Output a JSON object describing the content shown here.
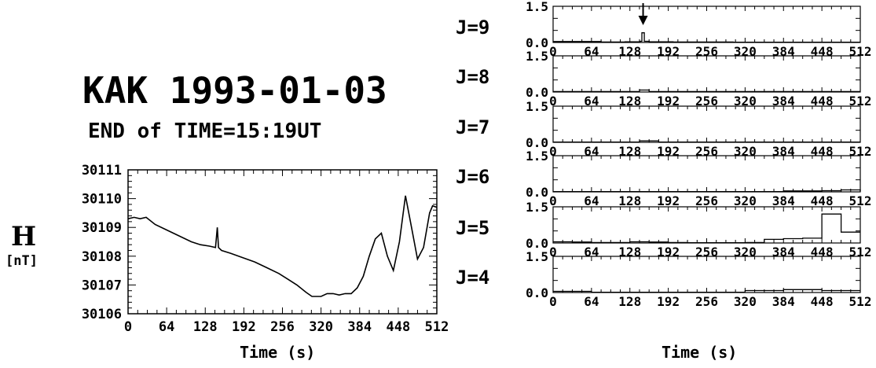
{
  "header": {
    "title": "KAK 1993-01-03",
    "subtitle": "END of TIME=15:19UT"
  },
  "left_axis": {
    "h_label": "H",
    "unit_label": "[nT]",
    "xlabel": "Time (s)"
  },
  "right_axis": {
    "xlabel": "Time (s)"
  },
  "chart_data": [
    {
      "type": "line",
      "title": "",
      "xlabel": "Time (s)",
      "ylabel": "H [nT]",
      "xlim": [
        0,
        512
      ],
      "ylim": [
        30106,
        30111
      ],
      "x_ticks": [
        0,
        64,
        128,
        192,
        256,
        320,
        384,
        448,
        512
      ],
      "y_ticks": [
        30106,
        30107,
        30108,
        30109,
        30110,
        30111
      ],
      "series": [
        {
          "x": [
            0,
            10,
            20,
            30,
            45,
            60,
            75,
            90,
            105,
            120,
            135,
            145,
            148,
            150,
            155,
            170,
            190,
            210,
            230,
            250,
            265,
            280,
            295,
            305,
            315,
            320,
            330,
            340,
            350,
            360,
            370,
            380,
            390,
            400,
            410,
            420,
            430,
            440,
            450,
            460,
            470,
            480,
            490,
            500,
            505,
            512
          ],
          "y": [
            30109.3,
            30109.35,
            30109.3,
            30109.35,
            30109.1,
            30108.95,
            30108.8,
            30108.65,
            30108.5,
            30108.4,
            30108.35,
            30108.3,
            30109.0,
            30108.3,
            30108.2,
            30108.1,
            30107.95,
            30107.8,
            30107.6,
            30107.4,
            30107.2,
            30107.0,
            30106.75,
            30106.6,
            30106.6,
            30106.6,
            30106.7,
            30106.7,
            30106.65,
            30106.7,
            30106.7,
            30106.9,
            30107.3,
            30108.0,
            30108.6,
            30108.8,
            30108.0,
            30107.5,
            30108.5,
            30110.1,
            30109.0,
            30107.9,
            30108.3,
            30109.5,
            30109.75,
            30109.7
          ]
        }
      ]
    },
    {
      "type": "bar",
      "label": "J=9",
      "xlim": [
        0,
        512
      ],
      "ylim": [
        0.0,
        1.5
      ],
      "y_ticks": [
        0.0,
        1.5
      ],
      "x_ticks": [
        0,
        64,
        128,
        192,
        256,
        320,
        384,
        448,
        512
      ],
      "annotation": "arrow at t=150",
      "x": [
        0,
        40,
        80,
        120,
        145,
        148,
        152,
        160,
        200,
        300,
        400,
        512
      ],
      "values": [
        0.04,
        0.04,
        0.02,
        0.03,
        0.05,
        0.4,
        0.05,
        0.03,
        0.02,
        0.01,
        0.01,
        0.01
      ]
    },
    {
      "type": "bar",
      "label": "J=8",
      "xlim": [
        0,
        512
      ],
      "ylim": [
        0.0,
        1.5
      ],
      "y_ticks": [
        0.0,
        1.5
      ],
      "x_ticks": [
        0,
        64,
        128,
        192,
        256,
        320,
        384,
        448,
        512
      ],
      "x": [
        0,
        128,
        144,
        160,
        512
      ],
      "values": [
        0.02,
        0.02,
        0.08,
        0.02,
        0.02
      ]
    },
    {
      "type": "bar",
      "label": "J=7",
      "xlim": [
        0,
        512
      ],
      "ylim": [
        0.0,
        1.5
      ],
      "y_ticks": [
        0.0,
        1.5
      ],
      "x_ticks": [
        0,
        64,
        128,
        192,
        256,
        320,
        384,
        448,
        512
      ],
      "x": [
        0,
        128,
        144,
        176,
        512
      ],
      "values": [
        0.01,
        0.01,
        0.06,
        0.01,
        0.01
      ]
    },
    {
      "type": "bar",
      "label": "J=6",
      "xlim": [
        0,
        512
      ],
      "ylim": [
        0.0,
        1.5
      ],
      "y_ticks": [
        0.0,
        1.5
      ],
      "x_ticks": [
        0,
        64,
        128,
        192,
        256,
        320,
        384,
        448,
        512
      ],
      "x": [
        0,
        384,
        448,
        480,
        512
      ],
      "values": [
        0.01,
        0.04,
        0.05,
        0.08,
        0.02
      ]
    },
    {
      "type": "bar",
      "label": "J=5",
      "xlim": [
        0,
        512
      ],
      "ylim": [
        0.0,
        1.5
      ],
      "y_ticks": [
        0.0,
        1.5
      ],
      "x_ticks": [
        0,
        64,
        128,
        192,
        256,
        320,
        384,
        448,
        512
      ],
      "x": [
        0,
        32,
        64,
        128,
        160,
        192,
        224,
        256,
        288,
        320,
        352,
        384,
        416,
        448,
        480
      ],
      "values": [
        0.05,
        0.04,
        0.02,
        0.05,
        0.04,
        0.02,
        0.01,
        0.01,
        0.01,
        0.02,
        0.15,
        0.18,
        0.2,
        1.2,
        0.45
      ]
    },
    {
      "type": "bar",
      "label": "J=4",
      "xlim": [
        0,
        512
      ],
      "ylim": [
        0.0,
        1.5
      ],
      "y_ticks": [
        0.0,
        1.5
      ],
      "x_ticks": [
        0,
        64,
        128,
        192,
        256,
        320,
        384,
        448,
        512
      ],
      "x": [
        0,
        64,
        128,
        192,
        256,
        320,
        384,
        448
      ],
      "values": [
        0.05,
        0.01,
        0.01,
        0.01,
        0.01,
        0.08,
        0.12,
        0.08
      ]
    }
  ]
}
